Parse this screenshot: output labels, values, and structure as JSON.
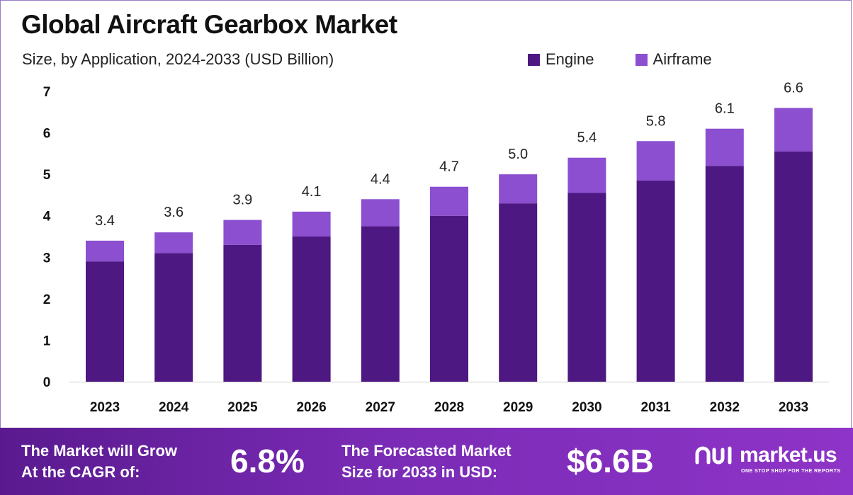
{
  "header": {
    "title": "Global Aircraft Gearbox Market",
    "subtitle": "Size, by Application, 2024-2033 (USD Billion)"
  },
  "colors": {
    "engine": "#4e1882",
    "airframe": "#8b4fd0",
    "footer_start": "#5a1a8f",
    "footer_end": "#8e34c8"
  },
  "chart_data": {
    "type": "bar",
    "stacked": true,
    "categories": [
      "2023",
      "2024",
      "2025",
      "2026",
      "2027",
      "2028",
      "2029",
      "2030",
      "2031",
      "2032",
      "2033"
    ],
    "series": [
      {
        "name": "Engine",
        "values": [
          2.9,
          3.1,
          3.3,
          3.5,
          3.75,
          4.0,
          4.3,
          4.55,
          4.85,
          5.2,
          5.55
        ]
      },
      {
        "name": "Airframe",
        "values": [
          0.5,
          0.5,
          0.6,
          0.6,
          0.65,
          0.7,
          0.7,
          0.85,
          0.95,
          0.9,
          1.05
        ]
      }
    ],
    "totals": [
      "3.4",
      "3.6",
      "3.9",
      "4.1",
      "4.4",
      "4.7",
      "5.0",
      "5.4",
      "5.8",
      "6.1",
      "6.6"
    ],
    "yticks": [
      "0",
      "1",
      "2",
      "3",
      "4",
      "5",
      "6",
      "7"
    ],
    "ylim": [
      0,
      7
    ],
    "grid": false,
    "legend_position": "top-right"
  },
  "footer": {
    "cagr_label_line1": "The Market will Grow",
    "cagr_label_line2": "At the CAGR of:",
    "cagr_value": "6.8%",
    "forecast_label_line1": "The Forecasted Market",
    "forecast_label_line2": "Size for 2033 in USD:",
    "forecast_value": "$6.6B",
    "brand_name": "market.us",
    "brand_tagline": "ONE STOP SHOP FOR THE REPORTS"
  }
}
